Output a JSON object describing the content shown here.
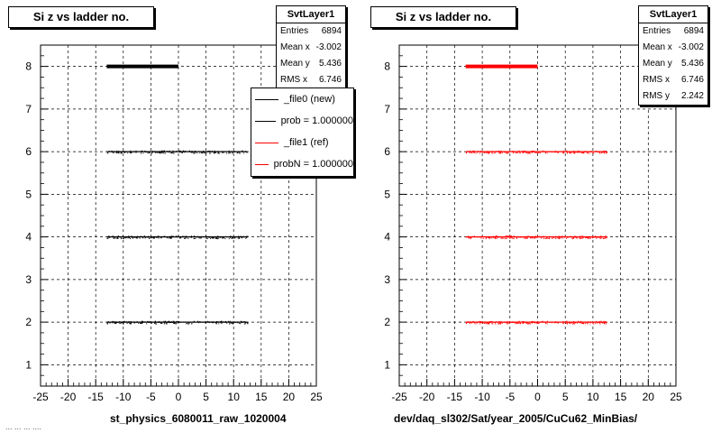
{
  "chart_data": [
    {
      "type": "scatter",
      "title": "Si z vs ladder no.",
      "xlabel": "st_physics_6080011_raw_1020004",
      "ylabel": "",
      "xlim": [
        -25,
        25
      ],
      "ylim": [
        0.5,
        8.5
      ],
      "xticks": [
        -25,
        -20,
        -15,
        -10,
        -5,
        0,
        5,
        10,
        15,
        20,
        25
      ],
      "yticks": [
        1,
        2,
        3,
        4,
        5,
        6,
        7,
        8
      ],
      "grid": true,
      "stats": {
        "name": "SvtLayer1",
        "rows": [
          {
            "label": "Entries",
            "value": "6894"
          },
          {
            "label": "Mean x",
            "value": "-3.002"
          },
          {
            "label": "Mean y",
            "value": "5.436"
          },
          {
            "label": "RMS x",
            "value": "6.746"
          }
        ]
      },
      "legend": [
        {
          "label": "_file0 (new)",
          "color": "#000000"
        },
        {
          "label": "prob = 1.000000",
          "color": "#000000"
        },
        {
          "label": "_file1 (ref)",
          "color": "#ff0000"
        },
        {
          "label": "probN = 1.000000",
          "color": "#ff0000"
        }
      ],
      "series": [
        {
          "name": "_file0 (new)",
          "color": "#000000",
          "bands": [
            {
              "y": 8,
              "x_min": -13,
              "x_max": 0,
              "dense": true
            },
            {
              "y": 6,
              "x_min": -13,
              "x_max": 12.5,
              "dense": false
            },
            {
              "y": 4,
              "x_min": -13,
              "x_max": 12.5,
              "dense": false
            },
            {
              "y": 2,
              "x_min": -13,
              "x_max": 12.5,
              "dense": false
            }
          ]
        }
      ]
    },
    {
      "type": "scatter",
      "title": "Si z vs ladder no.",
      "xlabel": "dev/daq_sl302/Sat/year_2005/CuCu62_MinBias/",
      "ylabel": "",
      "xlim": [
        -25,
        25
      ],
      "ylim": [
        0.5,
        8.5
      ],
      "xticks": [
        -25,
        -20,
        -15,
        -10,
        -5,
        0,
        5,
        10,
        15,
        20,
        25
      ],
      "yticks": [
        1,
        2,
        3,
        4,
        5,
        6,
        7,
        8
      ],
      "grid": true,
      "stats": {
        "name": "SvtLayer1",
        "rows": [
          {
            "label": "Entries",
            "value": "6894"
          },
          {
            "label": "Mean x",
            "value": "-3.002"
          },
          {
            "label": "Mean y",
            "value": "5.436"
          },
          {
            "label": "RMS x",
            "value": "6.746"
          },
          {
            "label": "RMS y",
            "value": "2.242"
          }
        ]
      },
      "series": [
        {
          "name": "_file1 (ref)",
          "color": "#ff0000",
          "bands": [
            {
              "y": 8,
              "x_min": -13,
              "x_max": 0,
              "dense": true
            },
            {
              "y": 6,
              "x_min": -13,
              "x_max": 12.5,
              "dense": false
            },
            {
              "y": 4,
              "x_min": -13,
              "x_max": 12.5,
              "dense": false
            },
            {
              "y": 2,
              "x_min": -13,
              "x_max": 12.5,
              "dense": false
            }
          ]
        }
      ]
    }
  ],
  "footer": "... ... ...  ...."
}
